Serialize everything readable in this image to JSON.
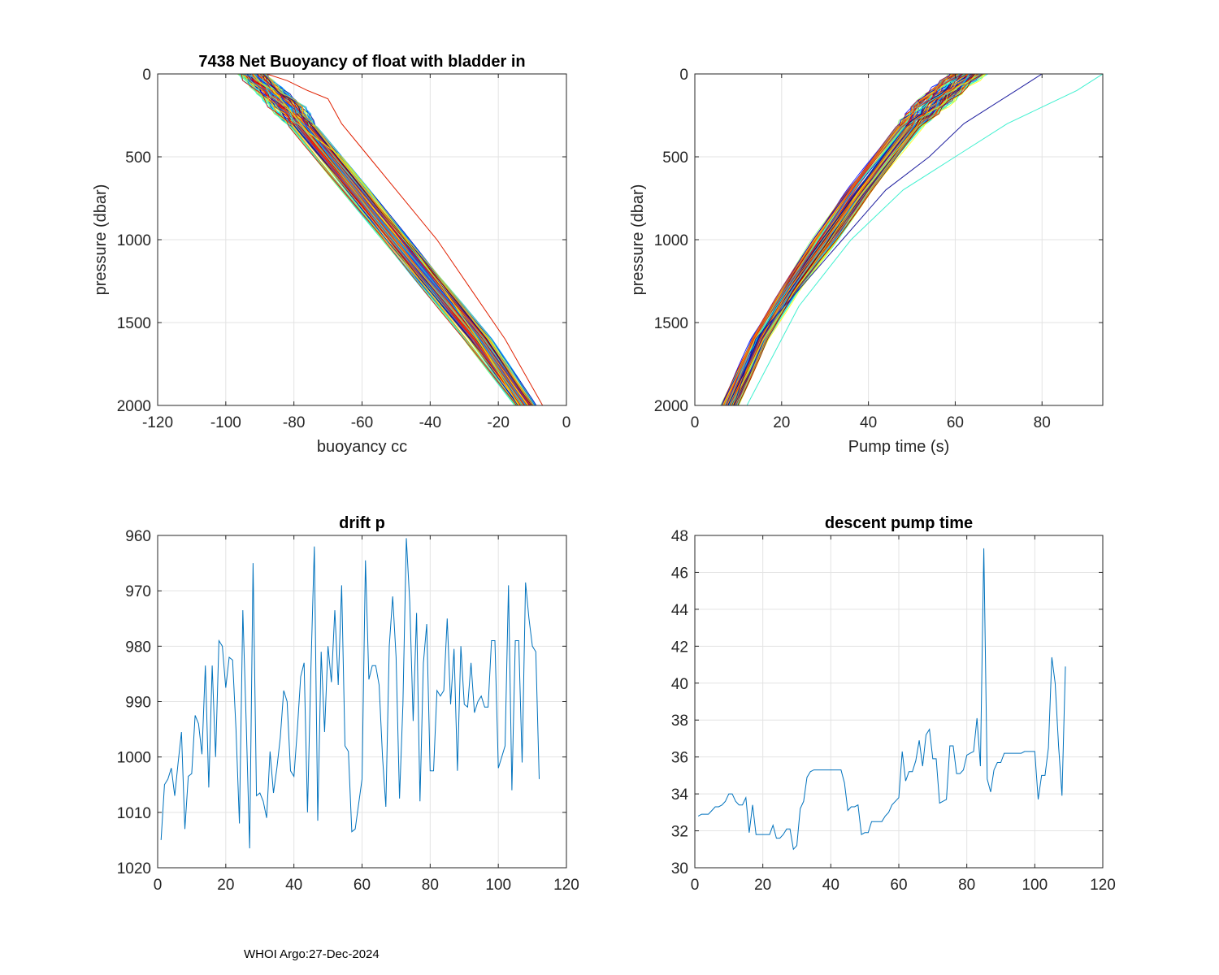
{
  "footer": "WHOI Argo:27-Dec-2024",
  "chart_data": [
    {
      "type": "line",
      "id": "buoyancy",
      "title": "7438 Net Buoyancy of float with bladder in",
      "xlabel": "buoyancy cc",
      "ylabel": "pressure (dbar)",
      "xlim": [
        -120,
        0
      ],
      "ylim": [
        0,
        2000
      ],
      "y_reversed": true,
      "grid": true,
      "xticks": [
        -120,
        -100,
        -80,
        -60,
        -40,
        -20,
        0
      ],
      "yticks": [
        0,
        500,
        1000,
        1500,
        2000
      ],
      "xtick_labels": [
        "-120",
        "-100",
        "-80",
        "-60",
        "-40",
        "-20",
        "0"
      ],
      "ytick_labels": [
        "0",
        "500",
        "1000",
        "1500",
        "2000"
      ],
      "colormap": "jet",
      "profile_count": 108,
      "profile_depths": [
        0,
        50,
        100,
        200,
        300,
        500,
        700,
        1000,
        1300,
        1600,
        2000
      ],
      "profile_base": [
        -92,
        -90,
        -87,
        -82,
        -78,
        -70,
        -62,
        -50,
        -38,
        -26,
        -12
      ],
      "profile_spread": [
        4,
        4,
        4,
        5,
        4,
        4,
        4,
        4,
        4,
        4,
        3
      ],
      "outliers": [
        {
          "name": "yellow outlier",
          "color": "#f5e600",
          "x": [
            -92,
            -90,
            -86,
            -80,
            -76,
            -66,
            -58,
            -47,
            -36,
            -26,
            -14
          ],
          "y": [
            0,
            50,
            100,
            250,
            350,
            500,
            700,
            1000,
            1300,
            1600,
            2000
          ]
        },
        {
          "name": "red outlier",
          "color": "#e02000",
          "x": [
            -88,
            -82,
            -76,
            -70,
            -66,
            -58,
            -50,
            -38,
            -28,
            -18,
            -7
          ],
          "y": [
            0,
            40,
            100,
            150,
            300,
            500,
            700,
            1000,
            1300,
            1600,
            2000
          ]
        },
        {
          "name": "surface line",
          "color": "#1f9cdc",
          "x": [
            -116,
            -104,
            -95,
            -92
          ],
          "y": [
            0,
            0,
            0,
            20
          ]
        }
      ]
    },
    {
      "type": "line",
      "id": "pump",
      "title": "",
      "xlabel": "Pump time (s)",
      "ylabel": "pressure (dbar)",
      "xlim": [
        0,
        94
      ],
      "ylim": [
        0,
        2000
      ],
      "y_reversed": true,
      "grid": true,
      "xticks": [
        0,
        20,
        40,
        60,
        80
      ],
      "yticks": [
        0,
        500,
        1000,
        1500,
        2000
      ],
      "xtick_labels": [
        "0",
        "20",
        "40",
        "60",
        "80"
      ],
      "ytick_labels": [
        "0",
        "500",
        "1000",
        "1500",
        "2000"
      ],
      "colormap": "jet",
      "profile_count": 108,
      "profile_depths": [
        0,
        100,
        200,
        300,
        500,
        700,
        1000,
        1300,
        1600,
        2000
      ],
      "profile_base": [
        63,
        58,
        54,
        50,
        44,
        38,
        30,
        22,
        15,
        8
      ],
      "profile_spread": [
        4,
        4,
        4,
        3,
        3,
        3,
        3,
        2,
        2,
        2
      ],
      "outliers": [
        {
          "name": "cyan outlier",
          "color": "#40f0d0",
          "x": [
            94,
            88,
            80,
            72,
            60,
            48,
            36,
            24,
            12
          ],
          "y": [
            0,
            100,
            200,
            300,
            500,
            700,
            1000,
            1400,
            2000
          ]
        },
        {
          "name": "dark blue outlier",
          "color": "#2020a0",
          "x": [
            80,
            74,
            68,
            62,
            54,
            44,
            34,
            24,
            14,
            9
          ],
          "y": [
            0,
            100,
            200,
            300,
            500,
            700,
            1000,
            1300,
            1600,
            2000
          ]
        },
        {
          "name": "surface line",
          "color": "#1f9cdc",
          "x": [
            66,
            76,
            84
          ],
          "y": [
            0,
            0,
            0
          ]
        }
      ]
    },
    {
      "type": "line",
      "id": "drift",
      "title": "drift p",
      "xlabel": "",
      "ylabel": "",
      "xlim": [
        0,
        120
      ],
      "ylim": [
        960,
        1020
      ],
      "y_reversed": true,
      "grid": true,
      "xticks": [
        0,
        20,
        40,
        60,
        80,
        100,
        120
      ],
      "yticks": [
        960,
        970,
        980,
        990,
        1000,
        1010,
        1020
      ],
      "xtick_labels": [
        "0",
        "20",
        "40",
        "60",
        "80",
        "100",
        "120"
      ],
      "ytick_labels": [
        "960",
        "970",
        "980",
        "990",
        "1000",
        "1010",
        "1020"
      ],
      "color": "#0072bd",
      "x_start": 1,
      "values": [
        1015,
        1005,
        1004,
        1002,
        1007,
        1001,
        995.5,
        1013,
        1003.5,
        1003,
        992.5,
        994,
        999.5,
        983.5,
        1005.5,
        983.5,
        1000,
        979,
        980,
        987.5,
        982,
        982.5,
        995,
        1012,
        973.5,
        994,
        1016.5,
        965,
        1007,
        1006.5,
        1008,
        1011,
        999,
        1006.5,
        1002,
        996.5,
        988,
        990,
        1002.5,
        1003.5,
        995,
        985.5,
        983,
        1010,
        984,
        962,
        1011.5,
        981,
        995.5,
        980,
        986.5,
        973.5,
        987,
        969,
        998,
        999,
        1013.5,
        1013,
        1008.5,
        1004,
        964.5,
        986,
        983.5,
        983.5,
        987,
        1000,
        1009,
        980,
        971,
        982,
        1007.5,
        990.5,
        960.5,
        972,
        993.5,
        974,
        1008,
        983,
        976,
        1002.5,
        1002.5,
        988,
        989,
        988,
        975,
        990.5,
        980.5,
        1002.5,
        980,
        990.5,
        991,
        983,
        992,
        990,
        989,
        991,
        991,
        979,
        979,
        1002,
        1000,
        998,
        969,
        1006,
        979,
        979,
        1001,
        968.5,
        975,
        980,
        981,
        1004
      ]
    },
    {
      "type": "line",
      "id": "descent",
      "title": "descent pump time",
      "xlabel": "",
      "ylabel": "",
      "xlim": [
        0,
        120
      ],
      "ylim": [
        30,
        48
      ],
      "y_reversed": false,
      "grid": true,
      "xticks": [
        0,
        20,
        40,
        60,
        80,
        100,
        120
      ],
      "yticks": [
        30,
        32,
        34,
        36,
        38,
        40,
        42,
        44,
        46,
        48
      ],
      "xtick_labels": [
        "0",
        "20",
        "40",
        "60",
        "80",
        "100",
        "120"
      ],
      "ytick_labels": [
        "30",
        "32",
        "34",
        "36",
        "38",
        "40",
        "42",
        "44",
        "46",
        "48"
      ],
      "color": "#0072bd",
      "x_start": 1,
      "values": [
        32.8,
        32.9,
        32.9,
        32.9,
        33.1,
        33.3,
        33.3,
        33.4,
        33.6,
        34.0,
        34.0,
        33.6,
        33.4,
        33.4,
        33.8,
        31.9,
        33.4,
        31.8,
        31.8,
        31.8,
        31.8,
        31.8,
        32.3,
        31.6,
        31.6,
        31.8,
        32.1,
        32.1,
        31.0,
        31.2,
        33.2,
        33.6,
        34.9,
        35.2,
        35.3,
        35.3,
        35.3,
        35.3,
        35.3,
        35.3,
        35.3,
        35.3,
        35.3,
        34.6,
        33.1,
        33.3,
        33.3,
        33.4,
        31.8,
        31.9,
        31.9,
        32.5,
        32.5,
        32.5,
        32.5,
        32.8,
        33.0,
        33.4,
        33.6,
        33.8,
        36.3,
        34.7,
        35.2,
        35.2,
        35.8,
        36.9,
        35.5,
        37.2,
        37.5,
        35.9,
        35.9,
        33.5,
        33.6,
        33.7,
        36.6,
        36.6,
        35.1,
        35.1,
        35.3,
        36.1,
        36.2,
        36.3,
        38.1,
        35.5,
        47.3,
        34.8,
        34.1,
        35.3,
        35.7,
        35.7,
        36.2,
        36.2,
        36.2,
        36.2,
        36.2,
        36.2,
        36.3,
        36.3,
        36.3,
        36.3,
        33.7,
        35.0,
        35.0,
        36.5,
        41.4,
        40.0,
        36.6,
        33.9,
        40.9
      ]
    }
  ]
}
